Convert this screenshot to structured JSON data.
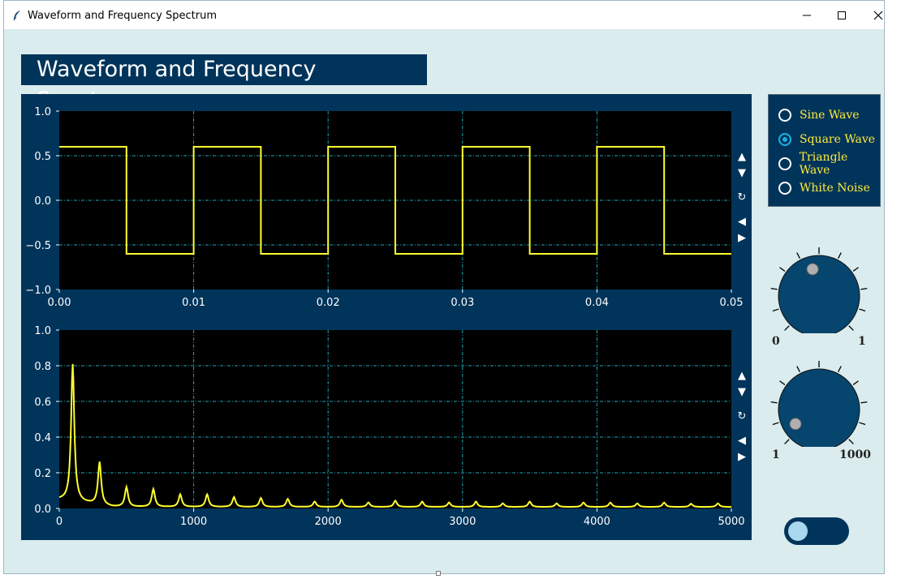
{
  "window": {
    "title": "Waveform and Frequency Spectrum"
  },
  "heading": "Waveform and Frequency Spectrum",
  "waveform_nav": {
    "up": "▲",
    "down": "▼",
    "reset": "↻",
    "left": "◀",
    "right": "▶"
  },
  "spectrum_nav": {
    "up": "▲",
    "down": "▼",
    "reset": "↻",
    "left": "◀",
    "right": "▶"
  },
  "wave_options": [
    {
      "label": "Sine Wave",
      "selected": false
    },
    {
      "label": "Square Wave",
      "selected": true
    },
    {
      "label": "Triangle Wave",
      "selected": false
    },
    {
      "label": "White Noise",
      "selected": false
    }
  ],
  "knobs": [
    {
      "min_label": "0",
      "max_label": "1",
      "value": 0.45
    },
    {
      "min_label": "1",
      "max_label": "1000",
      "value": 0.05
    }
  ],
  "toggle": {
    "on": false
  },
  "colors": {
    "panel": "#01345a",
    "plot_bg": "#000000",
    "trace": "#ffff2e",
    "grid": "#1fa3b8",
    "accent": "#1aaee2"
  },
  "chart_data": [
    {
      "type": "line",
      "title": "",
      "xlabel": "",
      "ylabel": "",
      "xlim": [
        0.0,
        0.05
      ],
      "ylim": [
        -1.0,
        1.0
      ],
      "xticks": [
        "0.00",
        "0.01",
        "0.02",
        "0.03",
        "0.04",
        "0.05"
      ],
      "yticks": [
        "1.0",
        "0.5",
        "0.0",
        "−0.5",
        "−1.0"
      ],
      "grid": true,
      "series": [
        {
          "x": [
            0.0,
            0.005,
            0.005,
            0.01,
            0.01,
            0.015,
            0.015,
            0.02,
            0.02,
            0.025,
            0.025,
            0.03,
            0.03,
            0.035,
            0.035,
            0.04,
            0.04,
            0.045,
            0.045,
            0.05
          ],
          "y": [
            0.6,
            0.6,
            -0.6,
            -0.6,
            0.6,
            0.6,
            -0.6,
            -0.6,
            0.6,
            0.6,
            -0.6,
            -0.6,
            0.6,
            0.6,
            -0.6,
            -0.6,
            0.6,
            0.6,
            -0.6,
            -0.6
          ]
        }
      ]
    },
    {
      "type": "line",
      "title": "",
      "xlabel": "",
      "ylabel": "",
      "xlim": [
        0,
        5000
      ],
      "ylim": [
        0.0,
        1.0
      ],
      "xticks": [
        "0",
        "1000",
        "2000",
        "3000",
        "4000",
        "5000"
      ],
      "yticks": [
        "1.0",
        "0.8",
        "0.6",
        "0.4",
        "0.2",
        "0.0"
      ],
      "grid": true,
      "baseline": 0.04,
      "peaks": [
        {
          "x": 100,
          "y": 0.77
        },
        {
          "x": 300,
          "y": 0.24
        },
        {
          "x": 500,
          "y": 0.11
        },
        {
          "x": 700,
          "y": 0.1
        },
        {
          "x": 900,
          "y": 0.07
        },
        {
          "x": 1100,
          "y": 0.07
        },
        {
          "x": 1300,
          "y": 0.055
        },
        {
          "x": 1500,
          "y": 0.05
        },
        {
          "x": 1700,
          "y": 0.045
        },
        {
          "x": 1900,
          "y": 0.03
        },
        {
          "x": 2100,
          "y": 0.04
        },
        {
          "x": 2300,
          "y": 0.025
        },
        {
          "x": 2500,
          "y": 0.035
        },
        {
          "x": 2700,
          "y": 0.03
        },
        {
          "x": 2900,
          "y": 0.025
        },
        {
          "x": 3100,
          "y": 0.03
        },
        {
          "x": 3300,
          "y": 0.02
        },
        {
          "x": 3500,
          "y": 0.03
        },
        {
          "x": 3700,
          "y": 0.02
        },
        {
          "x": 3900,
          "y": 0.025
        },
        {
          "x": 4100,
          "y": 0.025
        },
        {
          "x": 4300,
          "y": 0.02
        },
        {
          "x": 4500,
          "y": 0.025
        },
        {
          "x": 4700,
          "y": 0.018
        },
        {
          "x": 4900,
          "y": 0.02
        }
      ]
    }
  ]
}
